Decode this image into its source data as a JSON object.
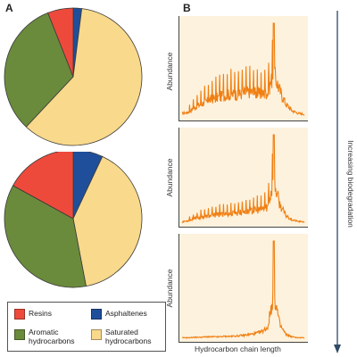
{
  "panels": {
    "a_label": "A",
    "b_label": "B"
  },
  "legend": {
    "items": [
      {
        "label": "Resins",
        "color": "#ee4a3c"
      },
      {
        "label": "Asphaltenes",
        "color": "#1f4f9a"
      },
      {
        "label": "Aromatic\nhydrocarbons",
        "color": "#6b8b3c"
      },
      {
        "label": "Saturated\nhydrocarbons",
        "color": "#f9d98b"
      }
    ]
  },
  "side_label": "Increasing biodegradation",
  "chart_data": [
    {
      "type": "pie",
      "slices": [
        {
          "name": "Resins",
          "value": 6,
          "color": "#ee4a3c"
        },
        {
          "name": "Asphaltenes",
          "value": 2,
          "color": "#1f4f9a"
        },
        {
          "name": "Aromatic hydrocarbons",
          "value": 32,
          "color": "#6b8b3c"
        },
        {
          "name": "Saturated hydrocarbons",
          "value": 60,
          "color": "#f9d98b"
        }
      ]
    },
    {
      "type": "pie",
      "slices": [
        {
          "name": "Resins",
          "value": 17,
          "color": "#ee4a3c"
        },
        {
          "name": "Asphaltenes",
          "value": 7,
          "color": "#1f4f9a"
        },
        {
          "name": "Aromatic hydrocarbons",
          "value": 36,
          "color": "#6b8b3c"
        },
        {
          "name": "Saturated hydrocarbons",
          "value": 40,
          "color": "#f9d98b"
        }
      ]
    },
    {
      "type": "line",
      "xlabel": "",
      "ylabel": "Abundance",
      "x": [
        0,
        0.05,
        0.1,
        0.15,
        0.2,
        0.25,
        0.3,
        0.35,
        0.4,
        0.45,
        0.5,
        0.55,
        0.6,
        0.65,
        0.7,
        0.75,
        0.8,
        0.85,
        0.9,
        0.95,
        1
      ],
      "series": [
        {
          "color": "#f07f12",
          "y": [
            0.1,
            0.12,
            0.22,
            0.3,
            0.36,
            0.42,
            0.46,
            0.5,
            0.52,
            0.52,
            0.54,
            0.58,
            0.55,
            0.52,
            0.56,
            1.0,
            0.6,
            0.3,
            0.16,
            0.1,
            0.08
          ]
        }
      ]
    },
    {
      "type": "line",
      "xlabel": "",
      "ylabel": "Abundance",
      "x": [
        0,
        0.05,
        0.1,
        0.15,
        0.2,
        0.25,
        0.3,
        0.35,
        0.4,
        0.45,
        0.5,
        0.55,
        0.6,
        0.65,
        0.7,
        0.75,
        0.8,
        0.85,
        0.9,
        0.95,
        1
      ],
      "series": [
        {
          "color": "#f07f12",
          "y": [
            0.05,
            0.08,
            0.12,
            0.16,
            0.18,
            0.2,
            0.22,
            0.24,
            0.24,
            0.26,
            0.28,
            0.3,
            0.32,
            0.34,
            0.4,
            1.0,
            0.45,
            0.2,
            0.1,
            0.06,
            0.05
          ]
        }
      ]
    },
    {
      "type": "line",
      "xlabel": "Hydrocarbon chain length",
      "ylabel": "Abundance",
      "x": [
        0,
        0.05,
        0.1,
        0.15,
        0.2,
        0.25,
        0.3,
        0.35,
        0.4,
        0.45,
        0.5,
        0.55,
        0.6,
        0.65,
        0.7,
        0.75,
        0.8,
        0.85,
        0.9,
        0.95,
        1
      ],
      "series": [
        {
          "color": "#f07f12",
          "y": [
            0.03,
            0.03,
            0.04,
            0.04,
            0.05,
            0.05,
            0.05,
            0.06,
            0.06,
            0.07,
            0.08,
            0.1,
            0.12,
            0.16,
            0.25,
            1.0,
            0.3,
            0.1,
            0.05,
            0.03,
            0.03
          ]
        }
      ]
    }
  ]
}
